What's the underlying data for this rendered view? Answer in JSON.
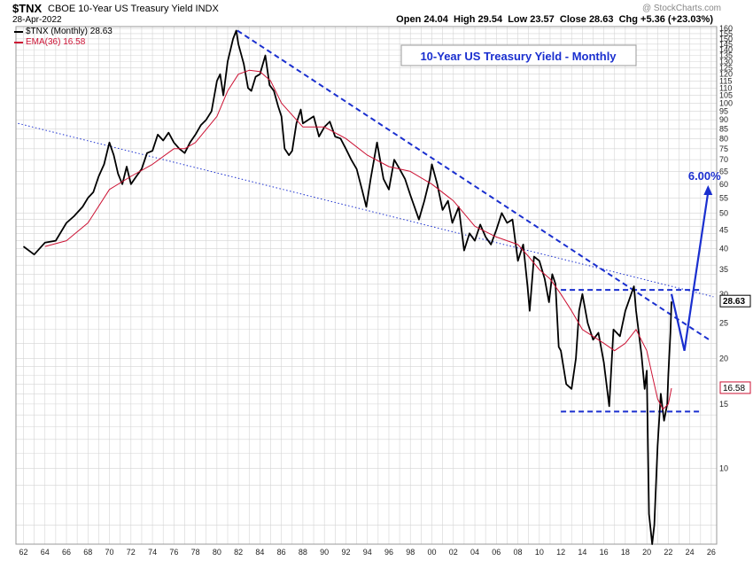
{
  "header": {
    "ticker": "$TNX",
    "description": "CBOE 10-Year US Treasury Yield",
    "exchange": "INDX",
    "date": "28-Apr-2022",
    "watermark": "@ StockCharts.com",
    "open_label": "Open",
    "open": "24.04",
    "high_label": "High",
    "high": "29.54",
    "low_label": "Low",
    "low": "23.57",
    "close_label": "Close",
    "close": "28.63",
    "chg_label": "Chg",
    "chg": "+5.36 (+23.03%)"
  },
  "legend": {
    "series_label": "$TNX (Monthly) 28.63",
    "ema_label": "EMA(36) 16.58"
  },
  "colors": {
    "price": "#000000",
    "ema": "#cc1133",
    "annotation": "#1a2fcf",
    "grid": "#d4d4d4"
  },
  "annotations": {
    "title": "10-Year US Treasury Yield - Monthly",
    "target": "6.00%",
    "last_price_tag": "28.63",
    "ema_tag": "16.58"
  },
  "chart_data": {
    "type": "line",
    "title": "10-Year US Treasury Yield - Monthly",
    "y_scale": "log",
    "ylim": [
      6.2,
      162
    ],
    "xlim": [
      1961.3,
      2026.5
    ],
    "y_ticks": [
      10,
      15,
      20,
      25,
      30,
      35,
      40,
      45,
      50,
      55,
      60,
      65,
      70,
      75,
      80,
      85,
      90,
      95,
      100,
      105,
      110,
      115,
      120,
      125,
      130,
      135,
      140,
      145,
      150,
      155,
      160
    ],
    "x_ticks": [
      1962,
      1964,
      1966,
      1968,
      1970,
      1972,
      1974,
      1976,
      1978,
      1980,
      1982,
      1984,
      1986,
      1988,
      1990,
      1992,
      1994,
      1996,
      1998,
      2000,
      2002,
      2004,
      2006,
      2008,
      2010,
      2012,
      2014,
      2016,
      2018,
      2020,
      2022,
      2024,
      2026
    ],
    "x_tick_labels": [
      "62",
      "64",
      "66",
      "68",
      "70",
      "72",
      "74",
      "76",
      "78",
      "80",
      "82",
      "84",
      "86",
      "88",
      "90",
      "92",
      "94",
      "96",
      "98",
      "00",
      "02",
      "04",
      "06",
      "08",
      "10",
      "12",
      "14",
      "16",
      "18",
      "20",
      "22",
      "24",
      "26"
    ],
    "grid": true,
    "legend_position": "top-left",
    "series": [
      {
        "name": "$TNX (Monthly)",
        "x": [
          1962.0,
          1963.0,
          1964.0,
          1965.0,
          1966.0,
          1966.7,
          1967.5,
          1968.0,
          1968.5,
          1969.0,
          1969.5,
          1970.0,
          1970.4,
          1970.8,
          1971.2,
          1971.6,
          1972.0,
          1972.5,
          1973.0,
          1973.5,
          1974.0,
          1974.5,
          1975.0,
          1975.5,
          1976.0,
          1976.5,
          1977.0,
          1977.5,
          1978.0,
          1978.5,
          1979.0,
          1979.5,
          1980.0,
          1980.3,
          1980.6,
          1981.0,
          1981.5,
          1981.8,
          1982.0,
          1982.5,
          1982.9,
          1983.2,
          1983.6,
          1984.0,
          1984.5,
          1984.9,
          1985.3,
          1985.7,
          1986.0,
          1986.3,
          1986.7,
          1987.0,
          1987.4,
          1987.8,
          1988.0,
          1988.5,
          1989.0,
          1989.5,
          1990.0,
          1990.5,
          1991.0,
          1991.5,
          1992.0,
          1992.5,
          1993.0,
          1993.5,
          1993.9,
          1994.3,
          1994.9,
          1995.5,
          1996.0,
          1996.5,
          1997.0,
          1997.5,
          1998.0,
          1998.8,
          1999.3,
          1999.8,
          2000.0,
          2000.5,
          2001.0,
          2001.5,
          2001.9,
          2002.5,
          2003.0,
          2003.5,
          2004.0,
          2004.5,
          2005.0,
          2005.5,
          2006.0,
          2006.5,
          2007.0,
          2007.5,
          2008.0,
          2008.5,
          2008.9,
          2009.1,
          2009.5,
          2010.0,
          2010.5,
          2010.9,
          2011.2,
          2011.5,
          2011.8,
          2012.0,
          2012.5,
          2013.0,
          2013.4,
          2013.7,
          2014.0,
          2014.5,
          2015.0,
          2015.5,
          2016.0,
          2016.5,
          2016.9,
          2017.5,
          2018.0,
          2018.8,
          2019.0,
          2019.5,
          2019.8,
          2020.0,
          2020.2,
          2020.5,
          2020.7,
          2021.0,
          2021.3,
          2021.6,
          2021.9,
          2022.0,
          2022.2,
          2022.3
        ],
        "y": [
          40.5,
          38.5,
          41.5,
          42.0,
          47.0,
          49.0,
          52.0,
          55.0,
          57.0,
          63.0,
          68.0,
          78.0,
          72.0,
          64.0,
          60.0,
          67.0,
          60.0,
          63.0,
          66.0,
          73.0,
          74.0,
          82.0,
          79.0,
          83.0,
          78.0,
          75.0,
          73.0,
          78.0,
          82.0,
          87.0,
          90.0,
          95.0,
          115.0,
          120.0,
          105.0,
          130.0,
          150.0,
          158.0,
          145.0,
          128.0,
          110.0,
          108.0,
          118.0,
          120.0,
          135.0,
          112.0,
          108.0,
          98.0,
          92.0,
          75.0,
          72.0,
          74.0,
          88.0,
          96.0,
          88.0,
          90.0,
          92.0,
          81.0,
          86.0,
          89.0,
          81.0,
          80.0,
          75.0,
          70.0,
          66.0,
          58.0,
          52.0,
          62.0,
          78.0,
          62.0,
          58.0,
          70.0,
          66.0,
          62.0,
          56.0,
          48.0,
          54.0,
          62.0,
          68.0,
          60.0,
          51.0,
          54.0,
          47.0,
          52.0,
          39.5,
          44.0,
          42.0,
          46.5,
          43.0,
          41.0,
          45.0,
          50.0,
          47.0,
          48.0,
          37.0,
          41.0,
          31.5,
          27.0,
          38.0,
          37.0,
          33.0,
          28.5,
          34.0,
          32.0,
          21.5,
          21.0,
          17.0,
          16.5,
          20.0,
          27.0,
          30.0,
          25.0,
          22.5,
          23.5,
          19.5,
          14.8,
          24.0,
          23.0,
          27.0,
          31.5,
          27.0,
          20.5,
          16.5,
          18.5,
          7.5,
          6.2,
          7.0,
          11.5,
          16.0,
          13.5,
          15.0,
          18.0,
          23.5,
          28.63
        ]
      },
      {
        "name": "EMA(36)",
        "x": [
          1964.0,
          1966.0,
          1968.0,
          1970.0,
          1972.0,
          1974.0,
          1976.0,
          1977.0,
          1978.0,
          1980.0,
          1981.0,
          1982.0,
          1983.0,
          1984.0,
          1985.0,
          1986.0,
          1988.0,
          1990.0,
          1992.0,
          1994.0,
          1996.0,
          1998.0,
          2000.0,
          2002.0,
          2004.0,
          2006.0,
          2008.0,
          2009.0,
          2010.0,
          2011.0,
          2012.0,
          2013.0,
          2014.0,
          2016.0,
          2017.0,
          2018.0,
          2019.0,
          2020.0,
          2020.5,
          2021.0,
          2021.5,
          2022.0,
          2022.3
        ],
        "y": [
          40.5,
          42.0,
          47.0,
          58.0,
          63.0,
          68.0,
          75.0,
          75.0,
          78.0,
          92.0,
          108.0,
          120.0,
          123.0,
          122.0,
          115.0,
          100.0,
          86.0,
          86.0,
          80.0,
          72.0,
          67.0,
          65.0,
          60.0,
          54.0,
          46.0,
          43.0,
          41.0,
          38.0,
          35.0,
          33.0,
          30.0,
          27.0,
          24.0,
          22.0,
          21.0,
          22.0,
          24.0,
          21.0,
          18.0,
          15.5,
          14.5,
          15.0,
          16.58
        ]
      }
    ],
    "trendlines": [
      {
        "name": "falling-resistance",
        "style": "dashed",
        "x": [
          1981.9,
          2025.8
        ],
        "y": [
          158.0,
          22.5
        ]
      },
      {
        "name": "long-term-trend",
        "style": "dotted",
        "x": [
          1961.5,
          2026.2
        ],
        "y": [
          88.0,
          29.5
        ]
      },
      {
        "name": "range-top",
        "style": "dashed",
        "x": [
          2012.0,
          2025.0
        ],
        "y": [
          30.8,
          30.8
        ]
      },
      {
        "name": "range-bottom",
        "style": "dashed",
        "x": [
          2012.0,
          2025.0
        ],
        "y": [
          14.3,
          14.3
        ]
      }
    ],
    "projection": {
      "x": [
        2022.3,
        2023.5,
        2025.7
      ],
      "y": [
        30.0,
        21.0,
        57.0
      ],
      "target_label": "6.00%"
    }
  }
}
